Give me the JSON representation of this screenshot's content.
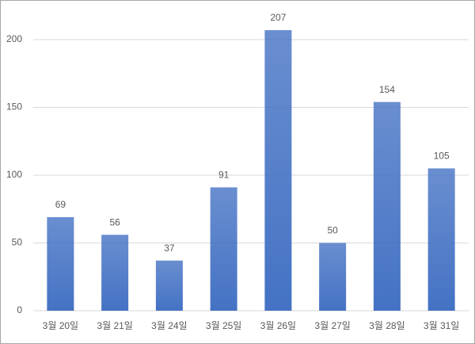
{
  "chart_data": {
    "type": "bar",
    "categories": [
      "3월 20일",
      "3월 21일",
      "3월 24일",
      "3월 25일",
      "3월 26일",
      "3월 27일",
      "3월 28일",
      "3월 31일"
    ],
    "values": [
      69,
      56,
      37,
      91,
      207,
      50,
      154,
      105
    ],
    "color": "#4472c4",
    "ylim": [
      0,
      220
    ],
    "yticks": [
      0,
      50,
      100,
      150,
      200
    ],
    "grid": true
  }
}
